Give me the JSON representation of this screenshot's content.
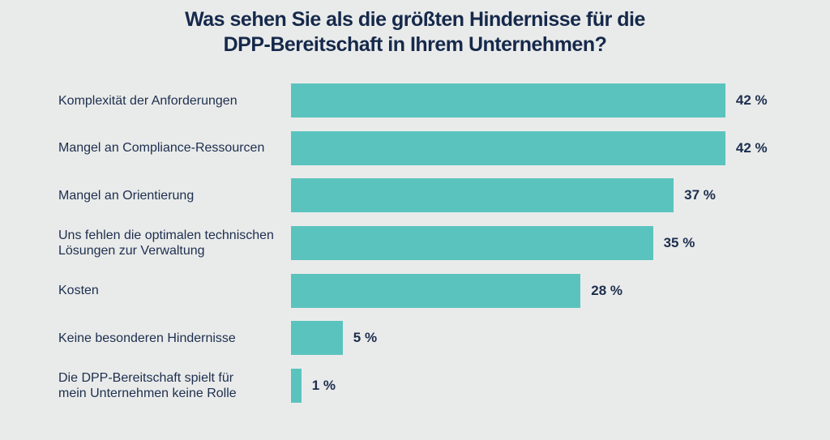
{
  "page": {
    "background_color": "#e9ebea",
    "text_color": "#1d2e4e"
  },
  "chart_data": {
    "type": "bar",
    "orientation": "horizontal",
    "title": "Was sehen Sie als die größten Hindernisse für die DPP-Bereitschaft in Ihrem Unternehmen?",
    "title_lines": [
      "Was sehen Sie als die größten Hindernisse für die",
      "DPP-Bereitschaft in Ihrem Unternehmen?"
    ],
    "categories": [
      "Komplexität der Anforderungen",
      "Mangel an Compliance-Ressourcen",
      "Mangel an Orientierung",
      "Uns fehlen die optimalen technischen Lösungen zur Verwaltung",
      "Kosten",
      "Keine besonderen Hindernisse",
      "Die DPP-Bereitschaft spielt für mein Unternehmen keine Rolle"
    ],
    "category_label_lines": [
      [
        "Komplexität der Anforderungen"
      ],
      [
        "Mangel an Compliance-Ressourcen"
      ],
      [
        "Mangel an Orientierung"
      ],
      [
        "Uns fehlen die optimalen technischen",
        "Lösungen zur Verwaltung"
      ],
      [
        "Kosten"
      ],
      [
        "Keine besonderen Hindernisse"
      ],
      [
        "Die DPP-Bereitschaft spielt für",
        "mein Unternehmen keine Rolle"
      ]
    ],
    "values": [
      42,
      42,
      37,
      35,
      28,
      5,
      1
    ],
    "value_labels": [
      "42 %",
      "42 %",
      "37 %",
      "35 %",
      "28 %",
      "5 %",
      "1 %"
    ],
    "unit": "%",
    "xlim": [
      0,
      45
    ],
    "grid": false,
    "legend": "none",
    "bar_color": "#5bc3be",
    "title_color": "#16294b",
    "label_color": "#1d2e4e"
  }
}
